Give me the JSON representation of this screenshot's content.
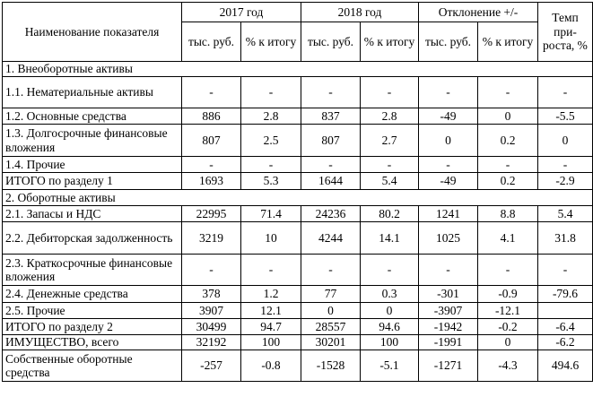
{
  "header": {
    "indicator": "Наименование показателя",
    "year1": "2017 год",
    "year2": "2018 год",
    "deviation": "Отклонение +/-",
    "growth_rate": "Темп при-роста, %",
    "sub_rub": "тыс. руб.",
    "sub_pct": "% к итогу"
  },
  "rows": [
    {
      "label": "1. Внеоборотные активы",
      "section": true,
      "values": [
        "",
        "",
        "",
        "",
        "",
        "",
        ""
      ]
    },
    {
      "label": "1.1. Нематериальные активы",
      "values": [
        "-",
        "-",
        "-",
        "-",
        "-",
        "-",
        "-"
      ]
    },
    {
      "label": "1.2. Основные средства",
      "values": [
        "886",
        "2.8",
        "837",
        "2.8",
        "-49",
        "0",
        "-5.5"
      ]
    },
    {
      "label": "1.3. Долгосрочные финансовые вложения",
      "values": [
        "807",
        "2.5",
        "807",
        "2.7",
        "0",
        "0.2",
        "0"
      ]
    },
    {
      "label": "1.4. Прочие",
      "values": [
        "-",
        "-",
        "-",
        "-",
        "-",
        "-",
        "-"
      ]
    },
    {
      "label": "ИТОГО по разделу 1",
      "values": [
        "1693",
        "5.3",
        "1644",
        "5.4",
        "-49",
        "0.2",
        "-2.9"
      ]
    },
    {
      "label": "2. Оборотные активы",
      "section": true,
      "values": [
        "",
        "",
        "",
        "",
        "",
        "",
        ""
      ]
    },
    {
      "label": "2.1. Запасы и НДС",
      "values": [
        "22995",
        "71.4",
        "24236",
        "80.2",
        "1241",
        "8.8",
        "5.4"
      ]
    },
    {
      "label": "2.2. Дебиторская задолженность",
      "values": [
        "3219",
        "10",
        "4244",
        "14.1",
        "1025",
        "4.1",
        "31.8"
      ]
    },
    {
      "label": "2.3. Краткосрочные финансовые вложения",
      "values": [
        "-",
        "-",
        "-",
        "-",
        "-",
        "-",
        "-"
      ]
    },
    {
      "label": "2.4. Денежные средства",
      "values": [
        "378",
        "1.2",
        "77",
        "0.3",
        "-301",
        "-0.9",
        "-79.6"
      ]
    },
    {
      "label": "2.5. Прочие",
      "values": [
        "3907",
        "12.1",
        "0",
        "0",
        "-3907",
        "-12.1",
        ""
      ]
    },
    {
      "label": "ИТОГО по разделу 2",
      "values": [
        "30499",
        "94.7",
        "28557",
        "94.6",
        "-1942",
        "-0.2",
        "-6.4"
      ]
    },
    {
      "label": "ИМУЩЕСТВО, всего",
      "values": [
        "32192",
        "100",
        "30201",
        "100",
        "-1991",
        "0",
        "-6.2"
      ]
    },
    {
      "label": "Собственные оборотные средства",
      "values": [
        "-257",
        "-0.8",
        "-1528",
        "-5.1",
        "-1271",
        "-4.3",
        "494.6"
      ]
    }
  ]
}
